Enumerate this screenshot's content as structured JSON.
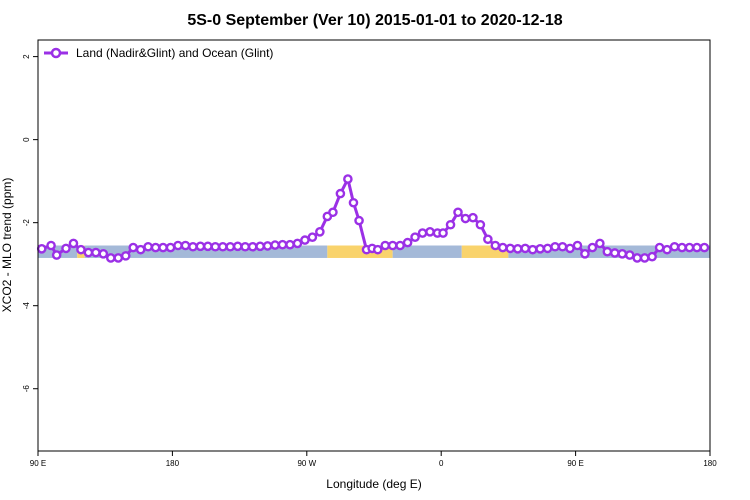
{
  "chart_data": {
    "type": "line",
    "title": "5S-0 September (Ver 10)   2015-01-01 to 2020-12-18",
    "xlabel": "Longitude (deg E)",
    "ylabel": "XCO2 - MLO trend (ppm)",
    "xlim": [
      90,
      450
    ],
    "ylim": [
      -7.5,
      2.4
    ],
    "x_ticks": [
      {
        "value": 90,
        "label": "90 E"
      },
      {
        "value": 162,
        "label": "180"
      },
      {
        "value": 234,
        "label": "90 W"
      },
      {
        "value": 306,
        "label": "0"
      },
      {
        "value": 378,
        "label": "90 E"
      },
      {
        "value": 450,
        "label": "180"
      }
    ],
    "y_ticks": [
      {
        "value": 2,
        "label": "2"
      },
      {
        "value": 0,
        "label": "0"
      },
      {
        "value": -2,
        "label": "-2"
      },
      {
        "value": -4,
        "label": "-4"
      },
      {
        "value": -6,
        "label": "-6"
      }
    ],
    "legend": {
      "placement": "top-left",
      "entries": [
        "Land (Nadir&Glint) and Ocean (Glint)"
      ]
    },
    "grid": false,
    "band": {
      "y_range": [
        -2.85,
        -2.55
      ],
      "ocean_color": "#a4b9d8",
      "land_color": "#f9d36c",
      "segments": [
        {
          "x": [
            90,
            111
          ],
          "kind": "ocean"
        },
        {
          "x": [
            111,
            115
          ],
          "kind": "land"
        },
        {
          "x": [
            115,
            245
          ],
          "kind": "ocean"
        },
        {
          "x": [
            245,
            280
          ],
          "kind": "land"
        },
        {
          "x": [
            280,
            317
          ],
          "kind": "ocean"
        },
        {
          "x": [
            317,
            342
          ],
          "kind": "land"
        },
        {
          "x": [
            342,
            450
          ],
          "kind": "ocean"
        }
      ]
    },
    "series": [
      {
        "name": "Land (Nadir&Glint) and Ocean (Glint)",
        "color": "#9b30e6",
        "x": [
          92,
          97,
          100,
          105,
          109,
          113,
          117,
          121,
          125,
          129,
          133,
          137,
          141,
          145,
          149,
          153,
          157,
          161,
          165,
          169,
          173,
          177,
          181,
          185,
          189,
          193,
          197,
          201,
          205,
          209,
          213,
          217,
          221,
          225,
          229,
          233,
          237,
          241,
          245,
          248,
          252,
          256,
          259,
          262,
          266,
          269,
          272,
          276,
          280,
          284,
          288,
          292,
          296,
          300,
          304,
          307,
          311,
          315,
          319,
          323,
          327,
          331,
          335,
          339,
          343,
          347,
          351,
          355,
          359,
          363,
          367,
          371,
          375,
          379,
          383,
          387,
          391,
          395,
          399,
          403,
          407,
          411,
          415,
          419,
          423,
          427,
          431,
          435,
          439,
          443,
          447
        ],
        "y": [
          -2.63,
          -2.55,
          -2.78,
          -2.62,
          -2.5,
          -2.65,
          -2.72,
          -2.72,
          -2.75,
          -2.85,
          -2.85,
          -2.8,
          -2.6,
          -2.65,
          -2.58,
          -2.6,
          -2.6,
          -2.6,
          -2.55,
          -2.55,
          -2.58,
          -2.57,
          -2.57,
          -2.58,
          -2.58,
          -2.58,
          -2.57,
          -2.58,
          -2.58,
          -2.57,
          -2.56,
          -2.54,
          -2.53,
          -2.53,
          -2.5,
          -2.42,
          -2.35,
          -2.22,
          -1.85,
          -1.75,
          -1.3,
          -0.95,
          -1.52,
          -1.95,
          -2.65,
          -2.62,
          -2.65,
          -2.55,
          -2.55,
          -2.55,
          -2.48,
          -2.35,
          -2.25,
          -2.22,
          -2.25,
          -2.25,
          -2.05,
          -1.75,
          -1.9,
          -1.88,
          -2.05,
          -2.4,
          -2.55,
          -2.6,
          -2.62,
          -2.63,
          -2.62,
          -2.65,
          -2.63,
          -2.62,
          -2.58,
          -2.58,
          -2.62,
          -2.55,
          -2.75,
          -2.6,
          -2.5,
          -2.7,
          -2.73,
          -2.75,
          -2.78,
          -2.85,
          -2.85,
          -2.82,
          -2.6,
          -2.65,
          -2.58,
          -2.6,
          -2.6,
          -2.6,
          -2.6
        ]
      }
    ]
  }
}
